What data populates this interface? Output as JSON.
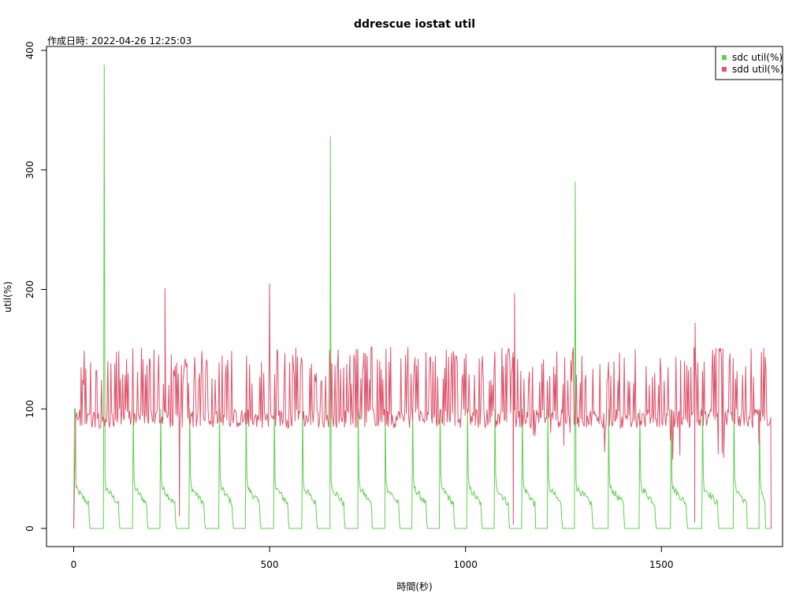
{
  "chart_data": {
    "type": "line",
    "title": "ddrescue iostat util",
    "subtitle": "作成日時: 2022-04-26 12:25:03",
    "xlabel": "時間(秒)",
    "ylabel": "util(%)",
    "xlim": [
      0,
      1780
    ],
    "ylim": [
      0,
      400
    ],
    "x_ticks": [
      0,
      500,
      1000,
      1500
    ],
    "y_ticks": [
      0,
      100,
      200,
      300,
      400
    ],
    "x_tick_labels": [
      "0",
      "500",
      "1000",
      "1500"
    ],
    "y_tick_labels": [
      "0",
      "100",
      "200",
      "300",
      "400"
    ],
    "grid": false,
    "legend_position": "top-right",
    "sampling_interval_s": 2,
    "series": [
      {
        "name": "sdc util(%)",
        "color": "#61D04F",
        "cycles": [
          {
            "start": 0,
            "end": 78,
            "peak": 100
          },
          {
            "start": 78,
            "end": 152,
            "peak": 388
          },
          {
            "start": 152,
            "end": 222,
            "peak": 100
          },
          {
            "start": 222,
            "end": 296,
            "peak": 100
          },
          {
            "start": 296,
            "end": 372,
            "peak": 100
          },
          {
            "start": 372,
            "end": 440,
            "peak": 100
          },
          {
            "start": 440,
            "end": 512,
            "peak": 100
          },
          {
            "start": 512,
            "end": 584,
            "peak": 100
          },
          {
            "start": 584,
            "end": 655,
            "peak": 100
          },
          {
            "start": 655,
            "end": 726,
            "peak": 328
          },
          {
            "start": 726,
            "end": 795,
            "peak": 100
          },
          {
            "start": 795,
            "end": 865,
            "peak": 100
          },
          {
            "start": 865,
            "end": 935,
            "peak": 100
          },
          {
            "start": 935,
            "end": 1005,
            "peak": 100
          },
          {
            "start": 1005,
            "end": 1075,
            "peak": 100
          },
          {
            "start": 1075,
            "end": 1145,
            "peak": 100
          },
          {
            "start": 1145,
            "end": 1210,
            "peak": 100
          },
          {
            "start": 1210,
            "end": 1280,
            "peak": 100
          },
          {
            "start": 1280,
            "end": 1365,
            "peak": 290
          },
          {
            "start": 1365,
            "end": 1445,
            "peak": 100
          },
          {
            "start": 1445,
            "end": 1525,
            "peak": 100
          },
          {
            "start": 1525,
            "end": 1605,
            "peak": 100
          },
          {
            "start": 1605,
            "end": 1685,
            "peak": 100
          },
          {
            "start": 1685,
            "end": 1750,
            "peak": 100
          },
          {
            "start": 1750,
            "end": 1780,
            "peak": 100
          }
        ]
      },
      {
        "name": "sdd util(%)",
        "color": "#DF536B",
        "active_range": [
          5,
          1780
        ],
        "baseline_range": [
          84,
          100
        ],
        "typical_spike_range": [
          120,
          152
        ],
        "spikes": [
          {
            "x": 233,
            "y": 201
          },
          {
            "x": 500,
            "y": 205
          },
          {
            "x": 1125,
            "y": 197
          },
          {
            "x": 1586,
            "y": 172
          }
        ],
        "dips": [
          {
            "x": 270,
            "y": 10
          },
          {
            "x": 1122,
            "y": 3
          },
          {
            "x": 1585,
            "y": 5
          }
        ]
      }
    ]
  }
}
